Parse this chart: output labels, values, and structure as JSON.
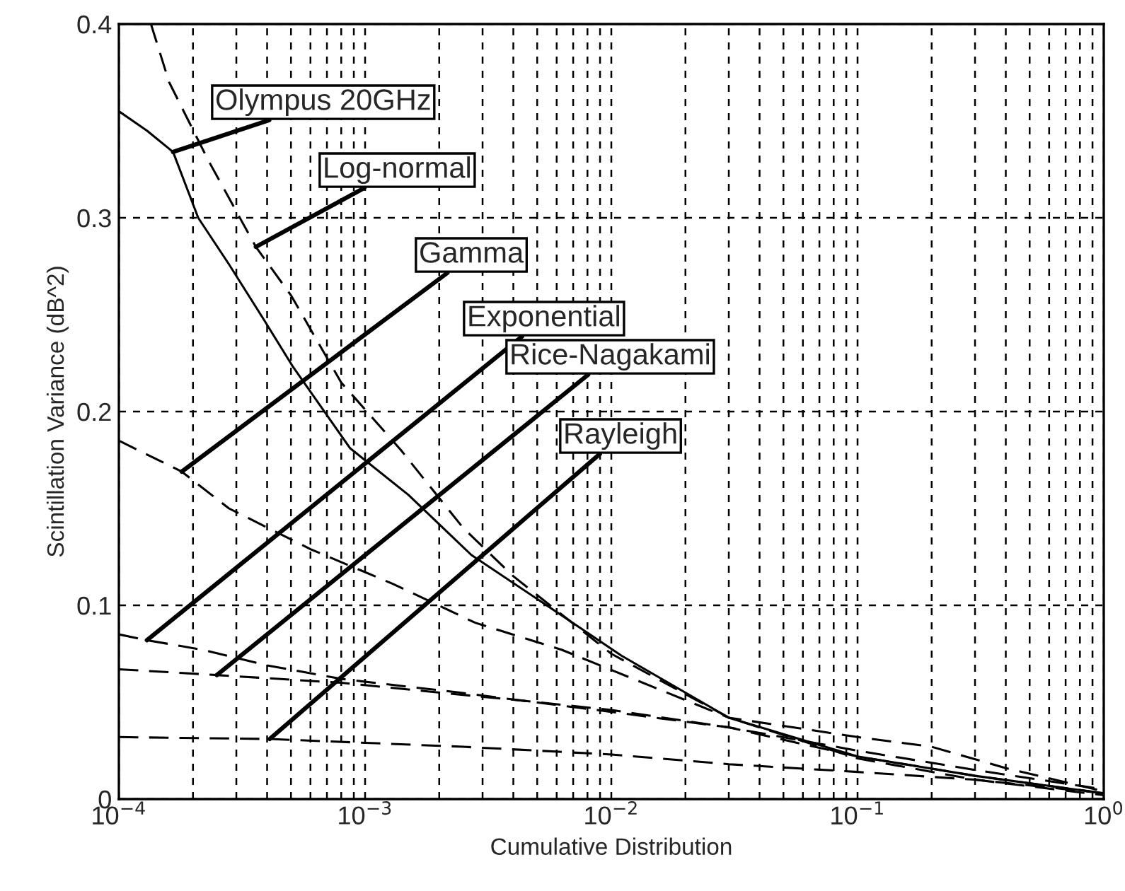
{
  "chart_data": {
    "type": "line",
    "xlabel": "Cumulative Distribution",
    "ylabel": "Scintillation Variance (dB^2)",
    "log": "x",
    "xlim": [
      0.0001,
      1
    ],
    "ylim": [
      0,
      0.4
    ],
    "xticks": [
      {
        "value": 0.0001,
        "label": "10$^{−4}$"
      },
      {
        "value": 0.001,
        "label": "10$^{−3}$"
      },
      {
        "value": 0.01,
        "label": "10$^{−2}$"
      },
      {
        "value": 0.1,
        "label": "10$^{−1}$"
      },
      {
        "value": 1,
        "label": "10$^{0}$"
      }
    ],
    "yticks": [
      0,
      0.1,
      0.2,
      0.3,
      0.4
    ],
    "grid": true,
    "legend": false,
    "marker": "none",
    "series": [
      {
        "color": "#000000",
        "line_style": "solid",
        "x": [
          0.0001,
          0.00013,
          0.000166,
          0.00021,
          0.00028,
          0.00039,
          0.00051,
          0.00087,
          0.0015,
          0.0027,
          0.0066,
          0.011,
          0.03,
          0.1,
          0.3,
          1
        ],
        "values": [
          0.355,
          0.345,
          0.334,
          0.3,
          0.276,
          0.247,
          0.223,
          0.181,
          0.157,
          0.126,
          0.093,
          0.074,
          0.042,
          0.022,
          0.012,
          0.003
        ]
      },
      {
        "color": "#000000",
        "line_style": "dashed",
        "x": [
          0.000135,
          0.00016,
          0.00023,
          0.00036,
          0.0005,
          0.0008,
          0.0014,
          0.0025,
          0.004,
          0.01,
          0.03,
          0.1,
          0.3,
          1
        ],
        "values": [
          0.4,
          0.37,
          0.33,
          0.285,
          0.26,
          0.215,
          0.18,
          0.14,
          0.115,
          0.075,
          0.042,
          0.021,
          0.01,
          0.002
        ]
      },
      {
        "color": "#000000",
        "line_style": "dashed",
        "x": [
          0.0001,
          0.00018,
          0.00028,
          0.0006,
          0.0013,
          0.0028,
          0.0063,
          0.03,
          0.1,
          0.2,
          0.4,
          1
        ],
        "values": [
          0.185,
          0.169,
          0.15,
          0.129,
          0.111,
          0.091,
          0.077,
          0.042,
          0.032,
          0.027,
          0.016,
          0.004
        ]
      },
      {
        "color": "#000000",
        "line_style": "dashed",
        "x": [
          0.0001,
          0.00013,
          0.00022,
          0.0004,
          0.0008,
          0.0024,
          0.01,
          0.03,
          0.1,
          0.3,
          1
        ],
        "values": [
          0.085,
          0.082,
          0.077,
          0.069,
          0.062,
          0.055,
          0.045,
          0.037,
          0.025,
          0.015,
          0.005
        ]
      },
      {
        "color": "#000000",
        "line_style": "dashed",
        "x": [
          0.0001,
          0.00025,
          0.0008,
          0.005,
          0.01,
          0.03,
          0.1,
          0.3,
          1
        ],
        "values": [
          0.067,
          0.064,
          0.06,
          0.05,
          0.046,
          0.037,
          0.022,
          0.012,
          0.003
        ]
      },
      {
        "color": "#000000",
        "line_style": "dashed",
        "x": [
          0.0001,
          0.00041,
          0.0025,
          0.01,
          0.03,
          0.1,
          0.3,
          1
        ],
        "values": [
          0.032,
          0.031,
          0.027,
          0.023,
          0.018,
          0.014,
          0.01,
          0.003
        ]
      }
    ],
    "annotations": [
      {
        "text": "Olympus 20GHz",
        "x": 0.000166,
        "y": 0.334
      },
      {
        "text": "Log-normal",
        "x": 0.00036,
        "y": 0.285
      },
      {
        "text": "Gamma",
        "x": 0.00018,
        "y": 0.169
      },
      {
        "text": "Exponential",
        "x": 0.00013,
        "y": 0.082
      },
      {
        "text": "Rice-Nagakami",
        "x": 0.00025,
        "y": 0.064
      },
      {
        "text": "Rayleigh",
        "x": 0.00041,
        "y": 0.031
      }
    ]
  }
}
